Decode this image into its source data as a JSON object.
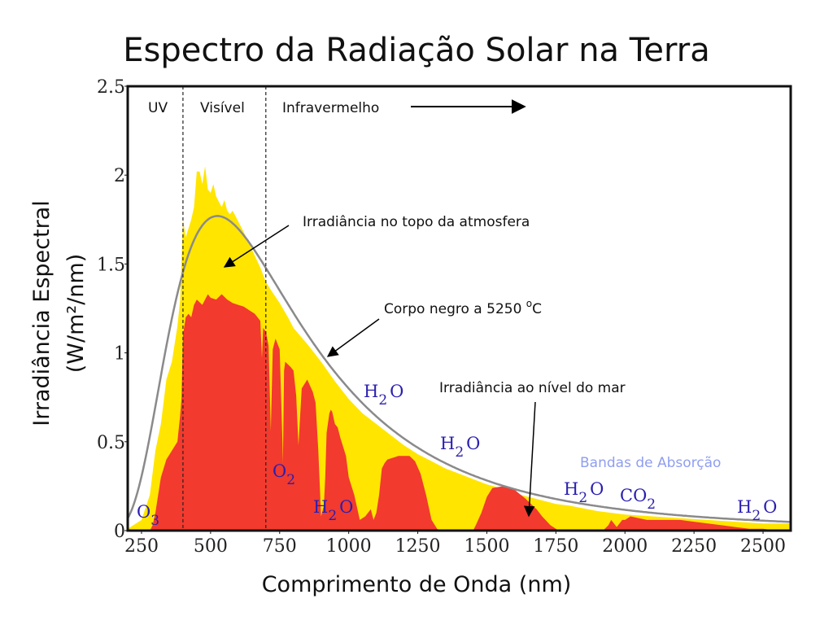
{
  "chart_data": {
    "type": "area",
    "title": "Espectro da Radiação Solar na Terra",
    "xlabel": "Comprimento de Onda (nm)",
    "ylabel_line1": "Irradiância Espectral",
    "ylabel_line2": "(W/m²/nm)",
    "xlim": [
      200,
      2600
    ],
    "ylim": [
      0,
      2.5
    ],
    "xticks": [
      250,
      500,
      750,
      1000,
      1250,
      1500,
      1750,
      2000,
      2250,
      2500
    ],
    "yticks": [
      0,
      0.5,
      1,
      1.5,
      2,
      2.5
    ],
    "ytick_labels": [
      "0",
      "0.5",
      "1",
      "1.5",
      "2",
      "2.5"
    ],
    "regions": [
      {
        "label": "UV",
        "x_start": 200,
        "x_end": 400
      },
      {
        "label": "Visível",
        "x_start": 400,
        "x_end": 700
      },
      {
        "label": "Infravermelho",
        "x_start": 700,
        "x_end": 2600
      }
    ],
    "series": [
      {
        "name": "Irradiância no topo da atmosfera",
        "color": "#ffe500",
        "x": [
          200,
          250,
          280,
          300,
          320,
          340,
          360,
          380,
          390,
          400,
          410,
          420,
          430,
          440,
          450,
          460,
          470,
          480,
          490,
          500,
          510,
          520,
          530,
          540,
          550,
          560,
          570,
          580,
          600,
          620,
          650,
          680,
          700,
          720,
          750,
          780,
          800,
          850,
          900,
          950,
          1000,
          1050,
          1100,
          1150,
          1200,
          1250,
          1300,
          1350,
          1400,
          1450,
          1500,
          1550,
          1600,
          1650,
          1700,
          1750,
          1800,
          1900,
          2000,
          2100,
          2200,
          2300,
          2400,
          2500,
          2600
        ],
        "values": [
          0.01,
          0.06,
          0.2,
          0.45,
          0.6,
          0.85,
          0.95,
          1.15,
          1.3,
          1.75,
          1.65,
          1.7,
          1.75,
          1.82,
          2.02,
          2.02,
          1.95,
          2.05,
          1.92,
          1.9,
          1.95,
          1.88,
          1.85,
          1.82,
          1.86,
          1.8,
          1.78,
          1.8,
          1.74,
          1.68,
          1.58,
          1.48,
          1.4,
          1.35,
          1.28,
          1.2,
          1.14,
          1.05,
          0.95,
          0.84,
          0.74,
          0.66,
          0.6,
          0.54,
          0.48,
          0.43,
          0.39,
          0.35,
          0.32,
          0.29,
          0.26,
          0.24,
          0.21,
          0.19,
          0.17,
          0.15,
          0.14,
          0.11,
          0.09,
          0.08,
          0.07,
          0.06,
          0.05,
          0.04,
          0.04
        ]
      },
      {
        "name": "Irradiância ao nível do mar",
        "color": "#f23a2e",
        "x": [
          280,
          290,
          300,
          310,
          320,
          340,
          360,
          380,
          390,
          395,
          400,
          410,
          420,
          430,
          440,
          450,
          470,
          490,
          500,
          520,
          540,
          560,
          580,
          600,
          620,
          640,
          660,
          680,
          686,
          690,
          700,
          710,
          718,
          725,
          735,
          740,
          750,
          760,
          762,
          766,
          770,
          790,
          800,
          810,
          818,
          830,
          850,
          870,
          880,
          890,
          900,
          910,
          915,
          920,
          930,
          935,
          940,
          950,
          960,
          970,
          990,
          1000,
          1020,
          1040,
          1060,
          1080,
          1090,
          1100,
          1110,
          1120,
          1130,
          1140,
          1160,
          1180,
          1200,
          1220,
          1240,
          1260,
          1280,
          1300,
          1320,
          1330,
          1340,
          1350,
          1400,
          1450,
          1460,
          1480,
          1500,
          1520,
          1560,
          1600,
          1640,
          1680,
          1700,
          1730,
          1760,
          1770,
          1800,
          1900,
          1920,
          1940,
          1950,
          1960,
          1970,
          1980,
          1990,
          2000,
          2020,
          2050,
          2080,
          2100,
          2150,
          2200,
          2250,
          2300,
          2350,
          2400,
          2450,
          2500,
          2550,
          2600
        ],
        "values": [
          0,
          0.03,
          0.1,
          0.2,
          0.3,
          0.4,
          0.45,
          0.5,
          0.65,
          0.75,
          1.1,
          1.2,
          1.22,
          1.2,
          1.27,
          1.3,
          1.27,
          1.33,
          1.31,
          1.3,
          1.33,
          1.3,
          1.28,
          1.27,
          1.26,
          1.24,
          1.22,
          1.18,
          0.97,
          1.14,
          1.12,
          1.04,
          0.56,
          1.02,
          1.08,
          1.06,
          1.02,
          0.5,
          0.38,
          0.9,
          0.95,
          0.92,
          0.9,
          0.76,
          0.48,
          0.8,
          0.85,
          0.78,
          0.72,
          0.45,
          0.08,
          0.14,
          0.3,
          0.55,
          0.66,
          0.68,
          0.67,
          0.6,
          0.58,
          0.52,
          0.42,
          0.3,
          0.2,
          0.06,
          0.08,
          0.12,
          0.06,
          0.1,
          0.2,
          0.35,
          0.38,
          0.4,
          0.41,
          0.42,
          0.42,
          0.42,
          0.39,
          0.32,
          0.2,
          0.06,
          0.01,
          0,
          0,
          0,
          0,
          0,
          0.03,
          0.1,
          0.19,
          0.24,
          0.25,
          0.23,
          0.18,
          0.12,
          0.08,
          0.03,
          0,
          0,
          0,
          0,
          0,
          0.03,
          0.06,
          0.04,
          0.02,
          0.04,
          0.06,
          0.06,
          0.08,
          0.07,
          0.06,
          0.06,
          0.06,
          0.06,
          0.05,
          0.04,
          0.03,
          0.02,
          0.01,
          0.01,
          0,
          0
        ]
      },
      {
        "name": "Corpo negro a 5250 °C",
        "color": "#8a8a8a",
        "temperature_c": 5250
      }
    ],
    "annotations": {
      "toa": "Irradiância no topo da atmosfera",
      "blackbody_prefix": "Corpo negro a 5250 ",
      "blackbody_degree": "o",
      "blackbody_unit": "C",
      "sea_level": "Irradiância ao nível do mar",
      "arrow_ir": "→"
    },
    "absorption_bands": {
      "label": "Bandas de Absorção",
      "molecules": [
        {
          "label": "O",
          "sub": "3",
          "x": 270
        },
        {
          "label": "O",
          "sub": "2",
          "x": 760
        },
        {
          "label": "H",
          "sub": "2",
          "after": "O",
          "x": 930
        },
        {
          "label": "H",
          "sub": "2",
          "after": "O",
          "x": 1000
        },
        {
          "label": "H",
          "sub": "2",
          "after": "O",
          "x": 1400
        },
        {
          "label": "H",
          "sub": "2",
          "after": "O",
          "x": 1850
        },
        {
          "label": "CO",
          "sub": "2",
          "x": 2000
        },
        {
          "label": "H",
          "sub": "2",
          "after": "O",
          "x": 2450
        }
      ]
    }
  }
}
